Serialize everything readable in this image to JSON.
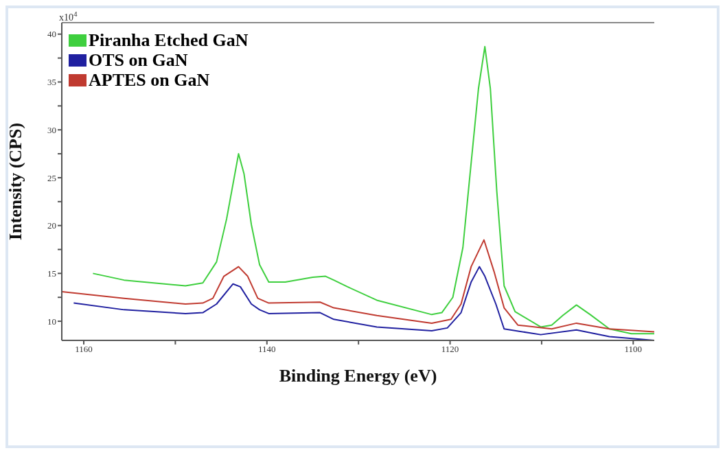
{
  "chart_data": {
    "type": "line",
    "xlabel": "Binding Energy (eV)",
    "ylabel": "Intensity (CPS)",
    "annotations": [
      "x10$^{4}$"
    ],
    "xlim": [
      1162.4,
      1097.7
    ],
    "xticks": [
      1160,
      {
        "value": 1150,
        "label": null
      },
      1140,
      {
        "value": 1130,
        "label": null
      },
      1120,
      {
        "value": 1110,
        "label": null
      },
      1100
    ],
    "ylim": [
      8,
      41.2
    ],
    "yticks": [
      10,
      {
        "value": 12.5,
        "label": null
      },
      15,
      {
        "value": 17.5,
        "label": null
      },
      20,
      {
        "value": 22.5,
        "label": null
      },
      25,
      {
        "value": 27.5,
        "label": null
      },
      30,
      {
        "value": 32.5,
        "label": null
      },
      35,
      {
        "value": 37.5,
        "label": null
      },
      40
    ],
    "grid": false,
    "legend": "top left",
    "marker": "none",
    "line_style": "solid",
    "series": [
      {
        "name": "Piranha Etched GaN",
        "color": "#3ecf3e",
        "x": [
          1159,
          1155.6,
          1148.9,
          1147,
          1145.5,
          1144.4,
          1143.5,
          1143.1,
          1142.5,
          1141.7,
          1140.8,
          1139.8,
          1138,
          1135,
          1133.6,
          1132.7,
          1131.2,
          1128,
          1122,
          1120.9,
          1119.7,
          1118.6,
          1118,
          1116.9,
          1116.2,
          1115.6,
          1114.9,
          1114.1,
          1112.9,
          1110.1,
          1108.9,
          1107.7,
          1106.2,
          1104.7,
          1102.6,
          1100.2,
          1097.7
        ],
        "values": [
          15.0,
          14.3,
          13.7,
          14.0,
          16.2,
          20.7,
          25.4,
          27.5,
          25.4,
          20.1,
          15.9,
          14.1,
          14.1,
          14.6,
          14.7,
          14.3,
          13.6,
          12.2,
          10.7,
          10.9,
          12.5,
          17.7,
          23.6,
          34.3,
          38.7,
          34.3,
          23.6,
          13.7,
          11.0,
          9.4,
          9.6,
          10.6,
          11.7,
          10.7,
          9.2,
          8.7,
          8.7
        ]
      },
      {
        "name": "OTS on GaN",
        "color": "#2020a0",
        "x": [
          1161.1,
          1155.6,
          1148.9,
          1147,
          1145.5,
          1143.7,
          1142.9,
          1141.7,
          1140.8,
          1139.8,
          1134.2,
          1132.7,
          1128,
          1122,
          1120.3,
          1118.8,
          1117.7,
          1116.8,
          1116.2,
          1115,
          1114.1,
          1110.1,
          1106.2,
          1102.6,
          1097.7
        ],
        "values": [
          11.9,
          11.2,
          10.8,
          10.9,
          11.8,
          13.9,
          13.6,
          11.8,
          11.2,
          10.8,
          10.9,
          10.2,
          9.4,
          9.0,
          9.3,
          10.9,
          14.1,
          15.7,
          14.7,
          11.8,
          9.2,
          8.6,
          9.1,
          8.4,
          8.0
        ]
      },
      {
        "name": "APTES on GaN",
        "color": "#c03a30",
        "x": [
          1162.4,
          1155.6,
          1148.9,
          1147,
          1145.9,
          1144.7,
          1143.1,
          1142.1,
          1141,
          1139.8,
          1134.2,
          1132.7,
          1128,
          1122,
          1119.9,
          1118.8,
          1117.7,
          1116.3,
          1115.2,
          1114.1,
          1112.6,
          1108.9,
          1106.2,
          1102.6,
          1097.7
        ],
        "values": [
          13.1,
          12.4,
          11.8,
          11.9,
          12.4,
          14.7,
          15.7,
          14.7,
          12.4,
          11.9,
          12.0,
          11.4,
          10.6,
          9.8,
          10.2,
          11.8,
          15.7,
          18.5,
          15.2,
          11.4,
          9.6,
          9.2,
          9.8,
          9.2,
          8.9
        ]
      }
    ]
  }
}
